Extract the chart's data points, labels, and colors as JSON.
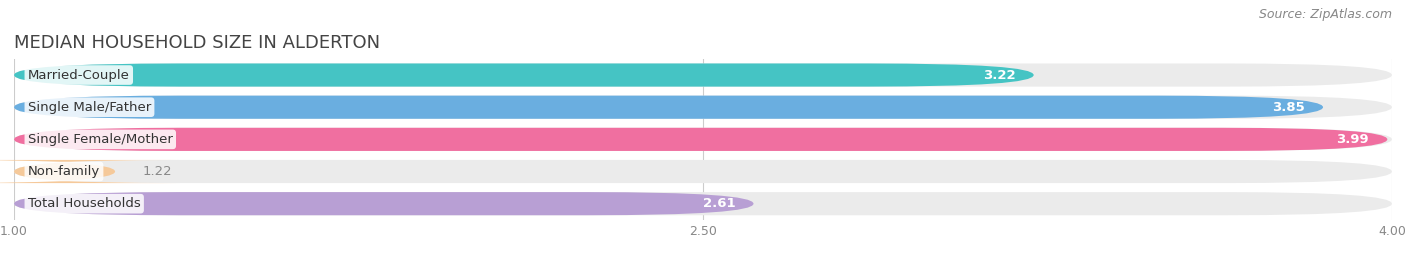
{
  "title": "MEDIAN HOUSEHOLD SIZE IN ALDERTON",
  "source": "Source: ZipAtlas.com",
  "categories": [
    "Married-Couple",
    "Single Male/Father",
    "Single Female/Mother",
    "Non-family",
    "Total Households"
  ],
  "values": [
    3.22,
    3.85,
    3.99,
    1.22,
    2.61
  ],
  "bar_colors": [
    "#45c4c4",
    "#6aaee0",
    "#f06fa0",
    "#f5c99a",
    "#b89fd4"
  ],
  "bar_bg_colors": [
    "#ebebeb",
    "#ebebeb",
    "#ebebeb",
    "#ebebeb",
    "#ebebeb"
  ],
  "xlim": [
    1.0,
    4.0
  ],
  "xticks": [
    1.0,
    2.5,
    4.0
  ],
  "xtick_labels": [
    "1.00",
    "2.50",
    "4.00"
  ],
  "title_fontsize": 13,
  "label_fontsize": 9.5,
  "value_fontsize": 9.5,
  "source_fontsize": 9,
  "background_color": "#ffffff",
  "bar_height": 0.72,
  "bar_spacing": 1.0
}
